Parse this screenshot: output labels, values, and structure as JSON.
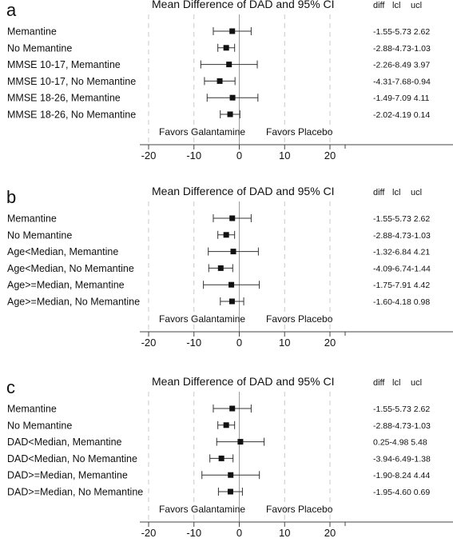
{
  "chart_data": [
    {
      "type": "forest",
      "panel_label": "a",
      "title": "Mean Difference of DAD and 95% CI",
      "column_headers": [
        "diff",
        "lcl",
        "ucl"
      ],
      "favors_left": "Favors Galantamine",
      "favors_right": "Favors Placebo",
      "xlim": [
        -20,
        20
      ],
      "x_ticks": [
        -20,
        -10,
        0,
        10,
        20
      ],
      "x_tick_labels": [
        "-20",
        "-10",
        "0",
        "10",
        "20"
      ],
      "rows": [
        {
          "label": "Memantine",
          "diff": -1.55,
          "lcl": -5.73,
          "ucl": 2.62,
          "text": "-1.55-5.73 2.62"
        },
        {
          "label": "No Memantine",
          "diff": -2.88,
          "lcl": -4.73,
          "ucl": -1.03,
          "text": "-2.88-4.73-1.03"
        },
        {
          "label": "MMSE 10-17, Memantine",
          "diff": -2.26,
          "lcl": -8.49,
          "ucl": 3.97,
          "text": "-2.26-8.49 3.97"
        },
        {
          "label": "MMSE 10-17, No Memantine",
          "diff": -4.31,
          "lcl": -7.68,
          "ucl": -0.94,
          "text": "-4.31-7.68-0.94"
        },
        {
          "label": "MMSE 18-26, Memantine",
          "diff": -1.49,
          "lcl": -7.09,
          "ucl": 4.11,
          "text": "-1.49-7.09 4.11"
        },
        {
          "label": "MMSE 18-26, No Memantine",
          "diff": -2.02,
          "lcl": -4.19,
          "ucl": 0.14,
          "text": "-2.02-4.19 0.14"
        }
      ]
    },
    {
      "type": "forest",
      "panel_label": "b",
      "title": "Mean Difference of DAD and 95% CI",
      "column_headers": [
        "diff",
        "lcl",
        "ucl"
      ],
      "favors_left": "Favors Galantamine",
      "favors_right": "Favors Placebo",
      "xlim": [
        -20,
        20
      ],
      "x_ticks": [
        -20,
        -10,
        0,
        10,
        20
      ],
      "x_tick_labels": [
        "-20",
        "-10",
        "0",
        "10",
        "20"
      ],
      "rows": [
        {
          "label": "Memantine",
          "diff": -1.55,
          "lcl": -5.73,
          "ucl": 2.62,
          "text": "-1.55-5.73 2.62"
        },
        {
          "label": "No Memantine",
          "diff": -2.88,
          "lcl": -4.73,
          "ucl": -1.03,
          "text": "-2.88-4.73-1.03"
        },
        {
          "label": "Age<Median, Memantine",
          "diff": -1.32,
          "lcl": -6.84,
          "ucl": 4.21,
          "text": "-1.32-6.84 4.21"
        },
        {
          "label": "Age<Median, No Memantine",
          "diff": -4.09,
          "lcl": -6.74,
          "ucl": -1.44,
          "text": "-4.09-6.74-1.44"
        },
        {
          "label": "Age>=Median, Memantine",
          "diff": -1.75,
          "lcl": -7.91,
          "ucl": 4.42,
          "text": "-1.75-7.91 4.42"
        },
        {
          "label": "Age>=Median, No Memantine",
          "diff": -1.6,
          "lcl": -4.18,
          "ucl": 0.98,
          "text": "-1.60-4.18 0.98"
        }
      ]
    },
    {
      "type": "forest",
      "panel_label": "c",
      "title": "Mean Difference of DAD and 95% CI",
      "column_headers": [
        "diff",
        "lcl",
        "ucl"
      ],
      "favors_left": "Favors Galantamine",
      "favors_right": "Favors Placebo",
      "xlim": [
        -20,
        20
      ],
      "x_ticks": [
        -20,
        -10,
        0,
        10,
        20
      ],
      "x_tick_labels": [
        "-20",
        "-10",
        "0",
        "10",
        "20"
      ],
      "rows": [
        {
          "label": "Memantine",
          "diff": -1.55,
          "lcl": -5.73,
          "ucl": 2.62,
          "text": "-1.55-5.73 2.62"
        },
        {
          "label": "No Memantine",
          "diff": -2.88,
          "lcl": -4.73,
          "ucl": -1.03,
          "text": "-2.88-4.73-1.03"
        },
        {
          "label": "DAD<Median, Memantine",
          "diff": 0.25,
          "lcl": -4.98,
          "ucl": 5.48,
          "text": "0.25-4.98 5.48"
        },
        {
          "label": "DAD<Median, No Memantine",
          "diff": -3.94,
          "lcl": -6.49,
          "ucl": -1.38,
          "text": "-3.94-6.49-1.38"
        },
        {
          "label": "DAD>=Median, Memantine",
          "diff": -1.9,
          "lcl": -8.24,
          "ucl": 4.44,
          "text": "-1.90-8.24 4.44"
        },
        {
          "label": "DAD>=Median, No Memantine",
          "diff": -1.95,
          "lcl": -4.6,
          "ucl": 0.69,
          "text": "-1.95-4.60 0.69"
        }
      ]
    }
  ]
}
